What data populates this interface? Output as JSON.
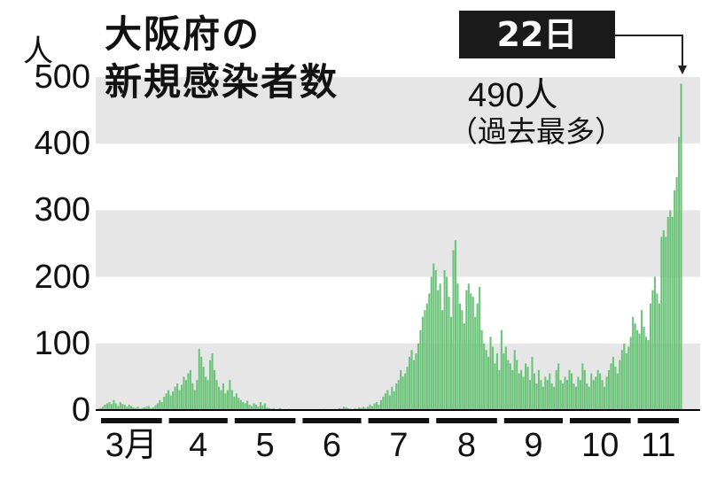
{
  "chart_data": {
    "type": "bar",
    "title": "大阪府の新規感染者数",
    "title_lines": [
      "大阪府の",
      "新規感染者数"
    ],
    "ylabel": "人",
    "ylim": [
      0,
      500
    ],
    "yticks": [
      "0",
      "100",
      "200",
      "300",
      "400",
      "500"
    ],
    "xticks": [
      "3月",
      "4",
      "5",
      "6",
      "7",
      "8",
      "9",
      "10",
      "11"
    ],
    "grid": "alternating horizontal bands",
    "bar_color": "#6cc47a",
    "band_color": "#e6e6e6",
    "annotation": {
      "date": "22日",
      "value_text": "490人",
      "note": "（過去最多）",
      "value": 490
    },
    "series": [
      {
        "month": "3月",
        "values": [
          2,
          3,
          5,
          8,
          10,
          12,
          9,
          15,
          10,
          6,
          12,
          9,
          8,
          5,
          8,
          6,
          4,
          3,
          5,
          2,
          3,
          4,
          5,
          6,
          3,
          4,
          7,
          10,
          15,
          12,
          20
        ]
      },
      {
        "month": "4",
        "values": [
          25,
          30,
          22,
          28,
          35,
          40,
          30,
          38,
          50,
          45,
          55,
          60,
          40,
          30,
          45,
          92,
          80,
          65,
          50,
          45,
          75,
          85,
          60,
          45,
          35,
          30,
          40,
          25,
          30,
          45
        ]
      },
      {
        "month": "5",
        "values": [
          30,
          20,
          25,
          18,
          15,
          12,
          10,
          14,
          8,
          6,
          10,
          8,
          5,
          12,
          7,
          10,
          4,
          3,
          2,
          3,
          1,
          2,
          3,
          1,
          0,
          1,
          2,
          1,
          0,
          1,
          0
        ]
      },
      {
        "month": "6",
        "values": [
          0,
          1,
          0,
          0,
          1,
          0,
          0,
          1,
          0,
          0,
          0,
          2,
          1,
          0,
          1,
          0,
          2,
          1,
          3,
          2,
          5,
          4,
          3,
          2,
          1,
          3,
          2,
          4,
          3,
          5
        ]
      },
      {
        "month": "7",
        "values": [
          3,
          5,
          8,
          6,
          10,
          12,
          8,
          15,
          20,
          25,
          30,
          22,
          35,
          28,
          40,
          45,
          60,
          50,
          55,
          65,
          80,
          90,
          75,
          85,
          100,
          120,
          140,
          150,
          160,
          175,
          200
        ]
      },
      {
        "month": "8",
        "values": [
          220,
          210,
          180,
          190,
          150,
          210,
          200,
          170,
          140,
          240,
          255,
          190,
          160,
          150,
          130,
          180,
          190,
          175,
          170,
          140,
          160,
          185,
          120,
          100,
          90,
          80,
          110,
          95,
          70,
          85,
          60
        ]
      },
      {
        "month": "9",
        "values": [
          120,
          85,
          95,
          75,
          70,
          60,
          90,
          75,
          55,
          60,
          50,
          70,
          65,
          45,
          80,
          55,
          40,
          60,
          45,
          35,
          50,
          45,
          55,
          40,
          35,
          60,
          70,
          45,
          40,
          50
        ]
      },
      {
        "month": "10",
        "values": [
          45,
          60,
          55,
          40,
          35,
          50,
          45,
          70,
          60,
          40,
          35,
          55,
          45,
          50,
          60,
          55,
          45,
          35,
          50,
          60,
          70,
          80,
          65,
          55,
          75,
          90,
          100,
          85,
          95,
          110,
          140
        ]
      },
      {
        "month": "11",
        "values": [
          130,
          120,
          115,
          150,
          125,
          110,
          105,
          160,
          180,
          200,
          175,
          160,
          260,
          270,
          260,
          290,
          300,
          290,
          330,
          350,
          410,
          490
        ]
      }
    ]
  }
}
